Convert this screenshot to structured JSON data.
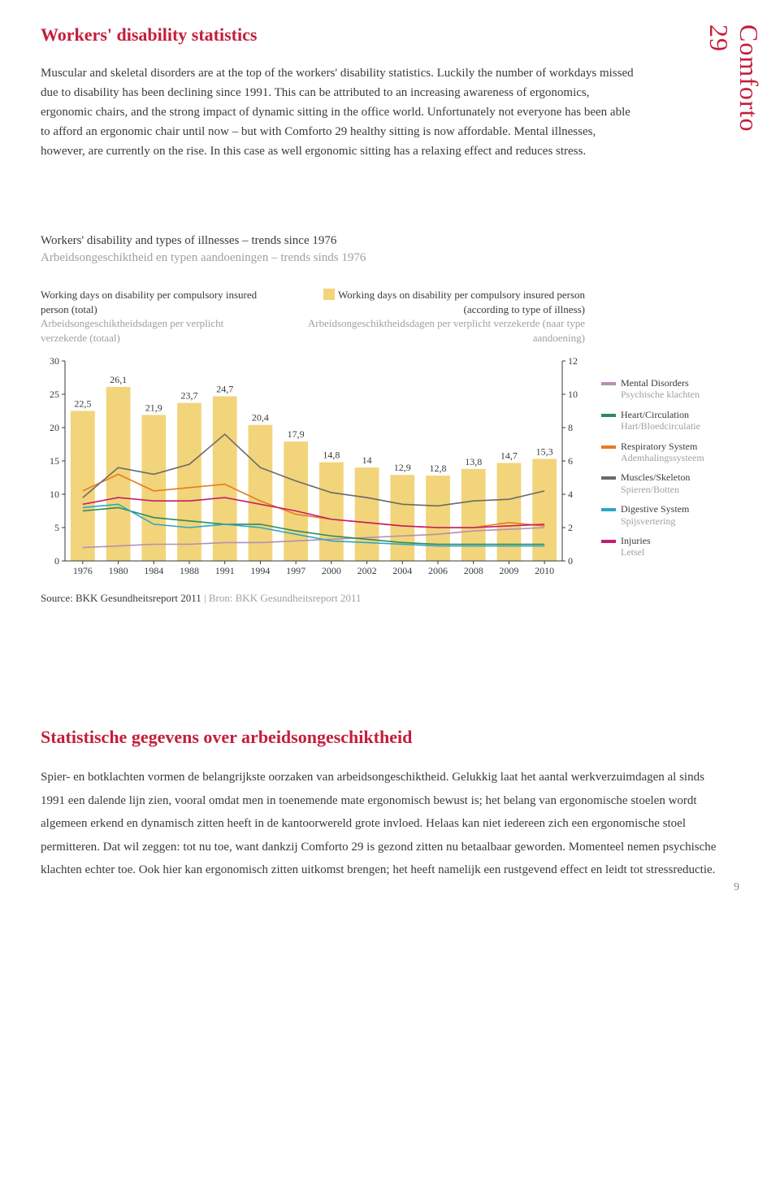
{
  "brand_side": "Comforto 29",
  "top": {
    "heading": "Workers' disability statistics",
    "body": "Muscular and skeletal disorders are at the top of the workers' disability statistics. Luckily the number of workdays missed due to disability has been declining since 1991. This can be attributed to an increasing awareness of ergonomics, ergonomic chairs, and the strong impact of dynamic sitting in the office world. Unfortunately not everyone has been able to afford an ergonomic chair until now – but with Comforto 29 healthy sitting is now affordable. Mental illnesses, however, are currently on the rise. In this case as well ergonomic sitting has a relaxing effect and reduces stress."
  },
  "chart": {
    "title_en": "Workers' disability and types of illnesses – trends since 1976",
    "title_nl": "Arbeidsongeschiktheid en typen aandoeningen – trends sinds 1976",
    "left_axis": {
      "en": "Working days on disability per compulsory insured person (total)",
      "nl": "Arbeidsongeschiktheidsdagen per verplicht verzekerde (totaal)"
    },
    "right_axis": {
      "en": "Working days on disability per compulsory insured person (according to type of illness)",
      "nl": "Arbeidsongeschiktheidsdagen per verplicht verzekerde (naar type aandoening)"
    },
    "years": [
      "1976",
      "1980",
      "1984",
      "1988",
      "1991",
      "1994",
      "1997",
      "2000",
      "2002",
      "2004",
      "2006",
      "2008",
      "2009",
      "2010"
    ],
    "bar_values": [
      22.5,
      26.1,
      21.9,
      23.7,
      24.7,
      20.4,
      17.9,
      14.8,
      14.0,
      12.9,
      12.8,
      13.8,
      14.7,
      15.3
    ],
    "bar_color": "#f2d47a",
    "left_ylim": [
      0,
      30
    ],
    "left_ticks": [
      0,
      5,
      10,
      15,
      20,
      25,
      30
    ],
    "right_ylim": [
      0,
      12
    ],
    "right_ticks": [
      0,
      2,
      4,
      6,
      8,
      10,
      12
    ],
    "axis_color": "#3a3a3a",
    "tick_font_size": 12,
    "bar_label_font_size": 12,
    "bar_label_color": "#3a3a3a",
    "background": "#ffffff",
    "bar_width_ratio": 0.68,
    "line_width": 1.6,
    "series": [
      {
        "key": "mental",
        "en": "Mental Disorders",
        "nl": "Psychische klachten",
        "color": "#b58fb5",
        "values": [
          0.8,
          0.9,
          1.0,
          1.0,
          1.1,
          1.1,
          1.2,
          1.3,
          1.4,
          1.5,
          1.6,
          1.8,
          1.9,
          2.0
        ]
      },
      {
        "key": "heart",
        "en": "Heart/Circulation",
        "nl": "Hart/Bloedcirculatie",
        "color": "#2e8b57",
        "values": [
          3.0,
          3.2,
          2.6,
          2.4,
          2.2,
          2.2,
          1.8,
          1.5,
          1.3,
          1.1,
          1.0,
          1.0,
          1.0,
          1.0
        ]
      },
      {
        "key": "resp",
        "en": "Respiratory System",
        "nl": "Ademhalingssysteem",
        "color": "#e67b1e",
        "values": [
          4.2,
          5.2,
          4.2,
          4.4,
          4.6,
          3.6,
          2.8,
          2.5,
          2.3,
          2.1,
          2.0,
          2.0,
          2.3,
          2.1
        ]
      },
      {
        "key": "muscle",
        "en": "Muscles/Skeleton",
        "nl": "Spieren/Botten",
        "color": "#6a6a6a",
        "values": [
          3.8,
          5.6,
          5.2,
          5.8,
          7.6,
          5.6,
          4.8,
          4.1,
          3.8,
          3.4,
          3.3,
          3.6,
          3.7,
          4.2
        ]
      },
      {
        "key": "digest",
        "en": "Digestive System",
        "nl": "Spijsvertering",
        "color": "#2ca6c9",
        "values": [
          3.2,
          3.4,
          2.2,
          2.0,
          2.2,
          2.0,
          1.6,
          1.2,
          1.1,
          1.0,
          0.9,
          0.9,
          0.9,
          0.9
        ]
      },
      {
        "key": "injury",
        "en": "Injuries",
        "nl": "Letsel",
        "color": "#c41e6e",
        "values": [
          3.4,
          3.8,
          3.6,
          3.6,
          3.8,
          3.4,
          3.0,
          2.5,
          2.3,
          2.1,
          2.0,
          2.0,
          2.1,
          2.2
        ]
      }
    ]
  },
  "source": {
    "en": "Source: BKK Gesundheitsreport 2011",
    "nl": "Bron: BKK Gesundheitsreport 2011"
  },
  "bottom": {
    "heading": "Statistische gegevens over arbeidsongeschiktheid",
    "body": "Spier- en botklachten vormen de belangrijkste oorzaken van arbeidsongeschiktheid. Gelukkig laat het aantal werkverzuimdagen al sinds 1991 een dalende lijn zien, vooral omdat men in toenemende mate ergonomisch bewust is; het belang van ergonomische stoelen wordt algemeen erkend en dynamisch zitten heeft in de kantoorwereld grote invloed. Helaas kan niet iedereen zich een ergonomische stoel permitteren. Dat wil zeggen: tot nu toe, want dankzij Comforto 29 is gezond zitten nu betaalbaar geworden. Momenteel nemen psychische klachten echter toe. Ook hier kan ergonomisch zitten uitkomst brengen; het heeft namelijk een rustgevend effect en leidt tot stressreductie."
  },
  "page_number": "9"
}
